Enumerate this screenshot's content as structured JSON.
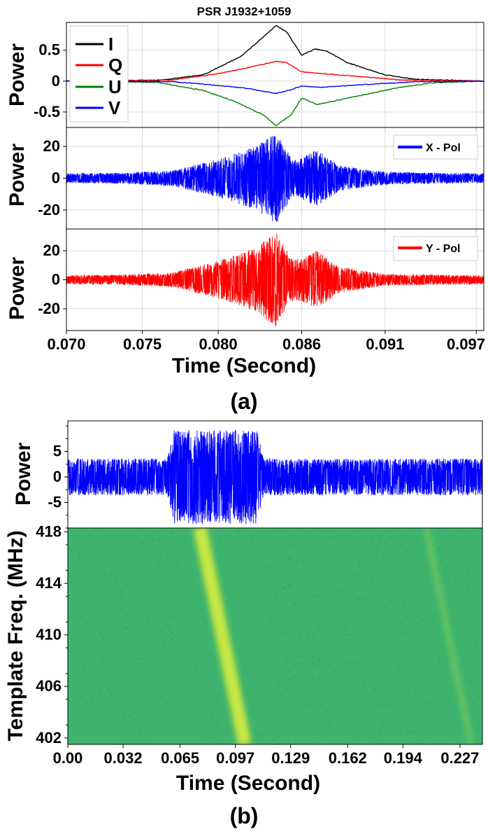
{
  "figure_title": "PSR J1932+1059",
  "colors": {
    "I": "#000000",
    "Q": "#ff0000",
    "U": "#008000",
    "V": "#0000ff",
    "x_pol": "#0000ff",
    "y_pol": "#ff0000",
    "raw": "#0000ff",
    "spec_bg": "#3db36e",
    "spec_track": "#c9e83a"
  },
  "chart_data": [
    {
      "panel": "a-1",
      "type": "line",
      "ylabel": "Power",
      "xlim": [
        0.07,
        0.0975
      ],
      "ylim": [
        -0.75,
        0.95
      ],
      "yticks": [
        0.5,
        0,
        -0.5
      ],
      "ytick_labels": [
        "0.5",
        "0",
        "-0.5"
      ],
      "legend": {
        "placement": "top-left",
        "entries": [
          "I",
          "Q",
          "U",
          "V"
        ]
      },
      "series": [
        {
          "name": "I",
          "x": [
            0.07,
            0.076,
            0.079,
            0.0815,
            0.083,
            0.0838,
            0.0845,
            0.0855,
            0.0864,
            0.0872,
            0.0885,
            0.091,
            0.093,
            0.0975
          ],
          "y": [
            0,
            0.01,
            0.1,
            0.4,
            0.72,
            0.9,
            0.8,
            0.42,
            0.52,
            0.48,
            0.3,
            0.1,
            0.03,
            0
          ]
        },
        {
          "name": "Q",
          "x": [
            0.07,
            0.077,
            0.08,
            0.082,
            0.0838,
            0.0845,
            0.0855,
            0.0865,
            0.089,
            0.092,
            0.0975
          ],
          "y": [
            0,
            0.02,
            0.12,
            0.22,
            0.32,
            0.3,
            0.15,
            0.13,
            0.08,
            0.02,
            0
          ]
        },
        {
          "name": "U",
          "x": [
            0.07,
            0.076,
            0.079,
            0.081,
            0.083,
            0.0838,
            0.0848,
            0.0855,
            0.0865,
            0.089,
            0.092,
            0.094,
            0.0975
          ],
          "y": [
            0,
            -0.02,
            -0.15,
            -0.32,
            -0.55,
            -0.72,
            -0.55,
            -0.27,
            -0.38,
            -0.25,
            -0.1,
            -0.03,
            0
          ]
        },
        {
          "name": "V",
          "x": [
            0.07,
            0.077,
            0.08,
            0.082,
            0.0838,
            0.0845,
            0.0855,
            0.0868,
            0.09,
            0.093,
            0.0975
          ],
          "y": [
            0,
            -0.01,
            -0.07,
            -0.12,
            -0.2,
            -0.16,
            -0.08,
            -0.1,
            -0.05,
            -0.01,
            0
          ]
        }
      ]
    },
    {
      "panel": "a-2",
      "type": "line",
      "ylabel": "Power",
      "xlim": [
        0.07,
        0.0975
      ],
      "ylim": [
        -32,
        32
      ],
      "yticks": [
        20,
        0,
        -20
      ],
      "ytick_labels": [
        "20",
        "0",
        "-20"
      ],
      "legend": {
        "placement": "top-right",
        "entries": [
          "X - Pol"
        ]
      },
      "series": [
        {
          "name": "X - Pol",
          "baseline_noise": 2.5,
          "envelope_x": [
            0.07,
            0.074,
            0.077,
            0.08,
            0.0825,
            0.0838,
            0.0848,
            0.0852,
            0.0865,
            0.088,
            0.091,
            0.0975
          ],
          "envelope_y": [
            3,
            3.5,
            5,
            12,
            20,
            29,
            13,
            12,
            18,
            8,
            4,
            3
          ]
        }
      ]
    },
    {
      "panel": "a-3",
      "type": "line",
      "ylabel": "Power",
      "xlabel": "Time (Second)",
      "xlim": [
        0.07,
        0.0975
      ],
      "ylim": [
        -35,
        35
      ],
      "yticks": [
        20,
        0,
        -20
      ],
      "ytick_labels": [
        "20",
        "0",
        "-20"
      ],
      "xticks": [
        0.07,
        0.075,
        0.08,
        0.0855,
        0.091,
        0.097
      ],
      "xtick_labels": [
        "0.070",
        "0.075",
        "0.080",
        "0.086",
        "0.091",
        "0.097"
      ],
      "legend": {
        "placement": "top-right",
        "entries": [
          "Y - Pol"
        ]
      },
      "series": [
        {
          "name": "Y - Pol",
          "baseline_noise": 2.5,
          "envelope_x": [
            0.07,
            0.074,
            0.077,
            0.08,
            0.0825,
            0.0838,
            0.0848,
            0.0852,
            0.0865,
            0.088,
            0.091,
            0.0975
          ],
          "envelope_y": [
            3,
            3.5,
            5,
            13,
            22,
            33,
            15,
            14,
            20,
            9,
            4,
            3
          ]
        }
      ]
    },
    {
      "panel": "b-1",
      "type": "line",
      "ylabel": "Power",
      "xlim": [
        0.0,
        0.24
      ],
      "ylim": [
        -10,
        11
      ],
      "yticks": [
        5,
        0,
        -5
      ],
      "ytick_labels": [
        "5",
        "0",
        "-5"
      ],
      "series": [
        {
          "name": "raw voltage",
          "baseline_noise": 3.6,
          "burst_start": 0.0575,
          "burst_end": 0.1135,
          "burst_amplitude": 9.2
        }
      ]
    },
    {
      "panel": "b-2",
      "type": "heatmap",
      "ylabel": "Template Freq. (MHz)",
      "xlabel": "Time (Second)",
      "xlim": [
        0.0,
        0.24
      ],
      "ylim": [
        401.5,
        418.3
      ],
      "yticks": [
        418,
        414,
        410,
        406,
        402
      ],
      "ytick_labels": [
        "418",
        "414",
        "410",
        "406",
        "402"
      ],
      "xticks": [
        0.0,
        0.032,
        0.065,
        0.097,
        0.129,
        0.162,
        0.194,
        0.227
      ],
      "xtick_labels": [
        "0.00",
        "0.032",
        "0.065",
        "0.097",
        "0.129",
        "0.162",
        "0.194",
        "0.227"
      ],
      "tracks": [
        {
          "name": "dispersed pulse",
          "t_at_418": 0.0765,
          "t_at_401_5": 0.1025,
          "strength": 1.0
        },
        {
          "name": "faint pulse",
          "t_at_418": 0.2075,
          "t_at_401_5": 0.2335,
          "strength": 0.25
        }
      ]
    }
  ],
  "captions": {
    "a": "(a)",
    "b": "(b)"
  },
  "axis_labels": {
    "power": "Power",
    "time": "Time (Second)",
    "template_freq": "Template Freq. (MHz)"
  },
  "legend_labels": {
    "I": "I",
    "Q": "Q",
    "U": "U",
    "V": "V",
    "x_pol": "X - Pol",
    "y_pol": "Y - Pol"
  }
}
